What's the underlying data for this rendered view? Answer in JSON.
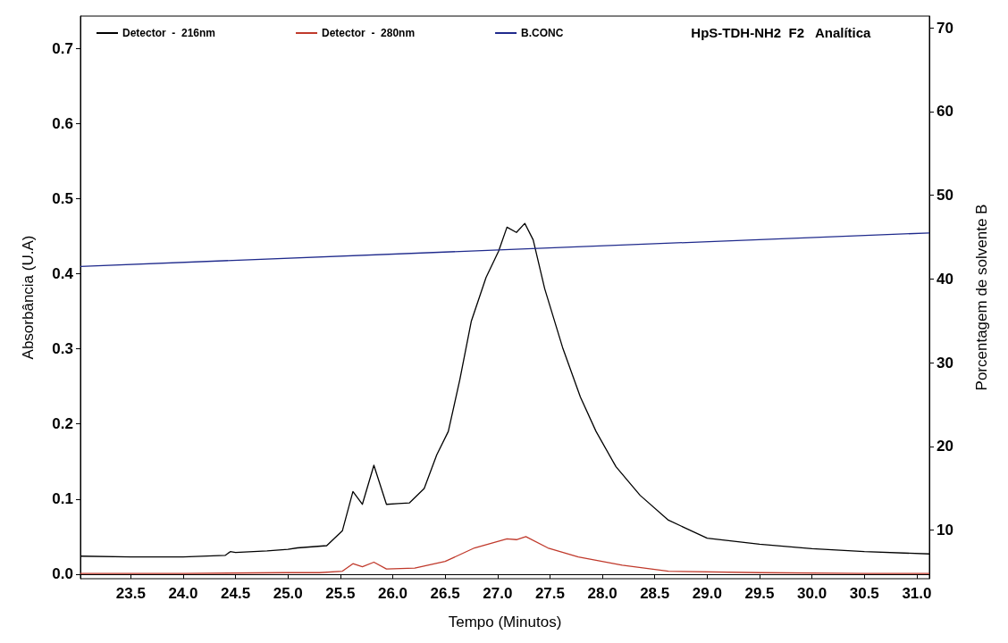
{
  "chart_data": {
    "type": "line",
    "title": "HpS-TDH-NH2  F2   Analítica",
    "xlabel": "Tempo (Minutos)",
    "ylabel": "Absorbância (U.A)",
    "y2label": "Porcentagem de solvente B",
    "xlim": [
      23.02,
      31.12
    ],
    "xticks": [
      {
        "value": 23.5,
        "label": "23.5"
      },
      {
        "value": 24,
        "label": "24.0"
      },
      {
        "value": 24.5,
        "label": "24.5"
      },
      {
        "value": 25,
        "label": "25.0"
      },
      {
        "value": 25.5,
        "label": "25.5"
      },
      {
        "value": 26,
        "label": "26.0"
      },
      {
        "value": 26.5,
        "label": "26.5"
      },
      {
        "value": 27,
        "label": "27.0"
      },
      {
        "value": 27.5,
        "label": "27.5"
      },
      {
        "value": 28,
        "label": "28.0"
      },
      {
        "value": 28.5,
        "label": "28.5"
      },
      {
        "value": 29,
        "label": "29.0"
      },
      {
        "value": 29.5,
        "label": "29.5"
      },
      {
        "value": 30,
        "label": "30.0"
      },
      {
        "value": 30.5,
        "label": "30.5"
      },
      {
        "value": 31,
        "label": "31.0"
      }
    ],
    "ylim": [
      -0.006,
      0.743
    ],
    "yticks": [
      {
        "value": 0,
        "label": "0.0"
      },
      0.1,
      0.2,
      0.3,
      0.4,
      0.5,
      0.6,
      0.7
    ],
    "y2lim": [
      4.2,
      71.4
    ],
    "y2ticks": [
      10,
      20,
      30,
      40,
      50,
      60,
      70
    ],
    "legend": "top left",
    "marker": "none",
    "line_style": "solid",
    "series": [
      {
        "name": "Detector  -  216nm",
        "color": "#000000",
        "x": [
          23.02,
          23.5,
          24.0,
          24.4,
          24.45,
          24.5,
          24.8,
          25.0,
          25.09,
          25.37,
          25.52,
          25.62,
          25.71,
          25.82,
          25.94,
          26.05,
          26.16,
          26.3,
          26.42,
          26.53,
          26.64,
          26.75,
          26.89,
          27.01,
          27.09,
          27.18,
          27.26,
          27.34,
          27.45,
          27.62,
          27.79,
          27.94,
          28.13,
          28.36,
          28.63,
          29.0,
          29.5,
          30.0,
          30.5,
          31.12
        ],
        "values": [
          0.024,
          0.023,
          0.023,
          0.025,
          0.03,
          0.029,
          0.031,
          0.033,
          0.035,
          0.038,
          0.058,
          0.11,
          0.093,
          0.145,
          0.093,
          0.094,
          0.095,
          0.114,
          0.159,
          0.19,
          0.259,
          0.337,
          0.395,
          0.43,
          0.462,
          0.455,
          0.467,
          0.445,
          0.38,
          0.302,
          0.236,
          0.19,
          0.143,
          0.105,
          0.072,
          0.048,
          0.04,
          0.034,
          0.03,
          0.027
        ]
      },
      {
        "name": "Detector  -  280nm",
        "color": "#c0392b",
        "x": [
          23.02,
          24.0,
          25.0,
          25.3,
          25.52,
          25.62,
          25.71,
          25.82,
          25.94,
          26.21,
          26.5,
          26.78,
          27.09,
          27.18,
          27.27,
          27.48,
          27.77,
          28.19,
          28.63,
          29.5,
          30.5,
          31.12
        ],
        "values": [
          0.001,
          0.001,
          0.002,
          0.002,
          0.004,
          0.014,
          0.01,
          0.016,
          0.007,
          0.008,
          0.017,
          0.035,
          0.047,
          0.046,
          0.05,
          0.035,
          0.023,
          0.012,
          0.004,
          0.002,
          0.001,
          0.001
        ]
      },
      {
        "name": "B.CONC",
        "color": "#1f2a8c",
        "axis": "y2",
        "x": [
          23.02,
          31.12
        ],
        "values": [
          41.5,
          45.5
        ]
      }
    ]
  }
}
